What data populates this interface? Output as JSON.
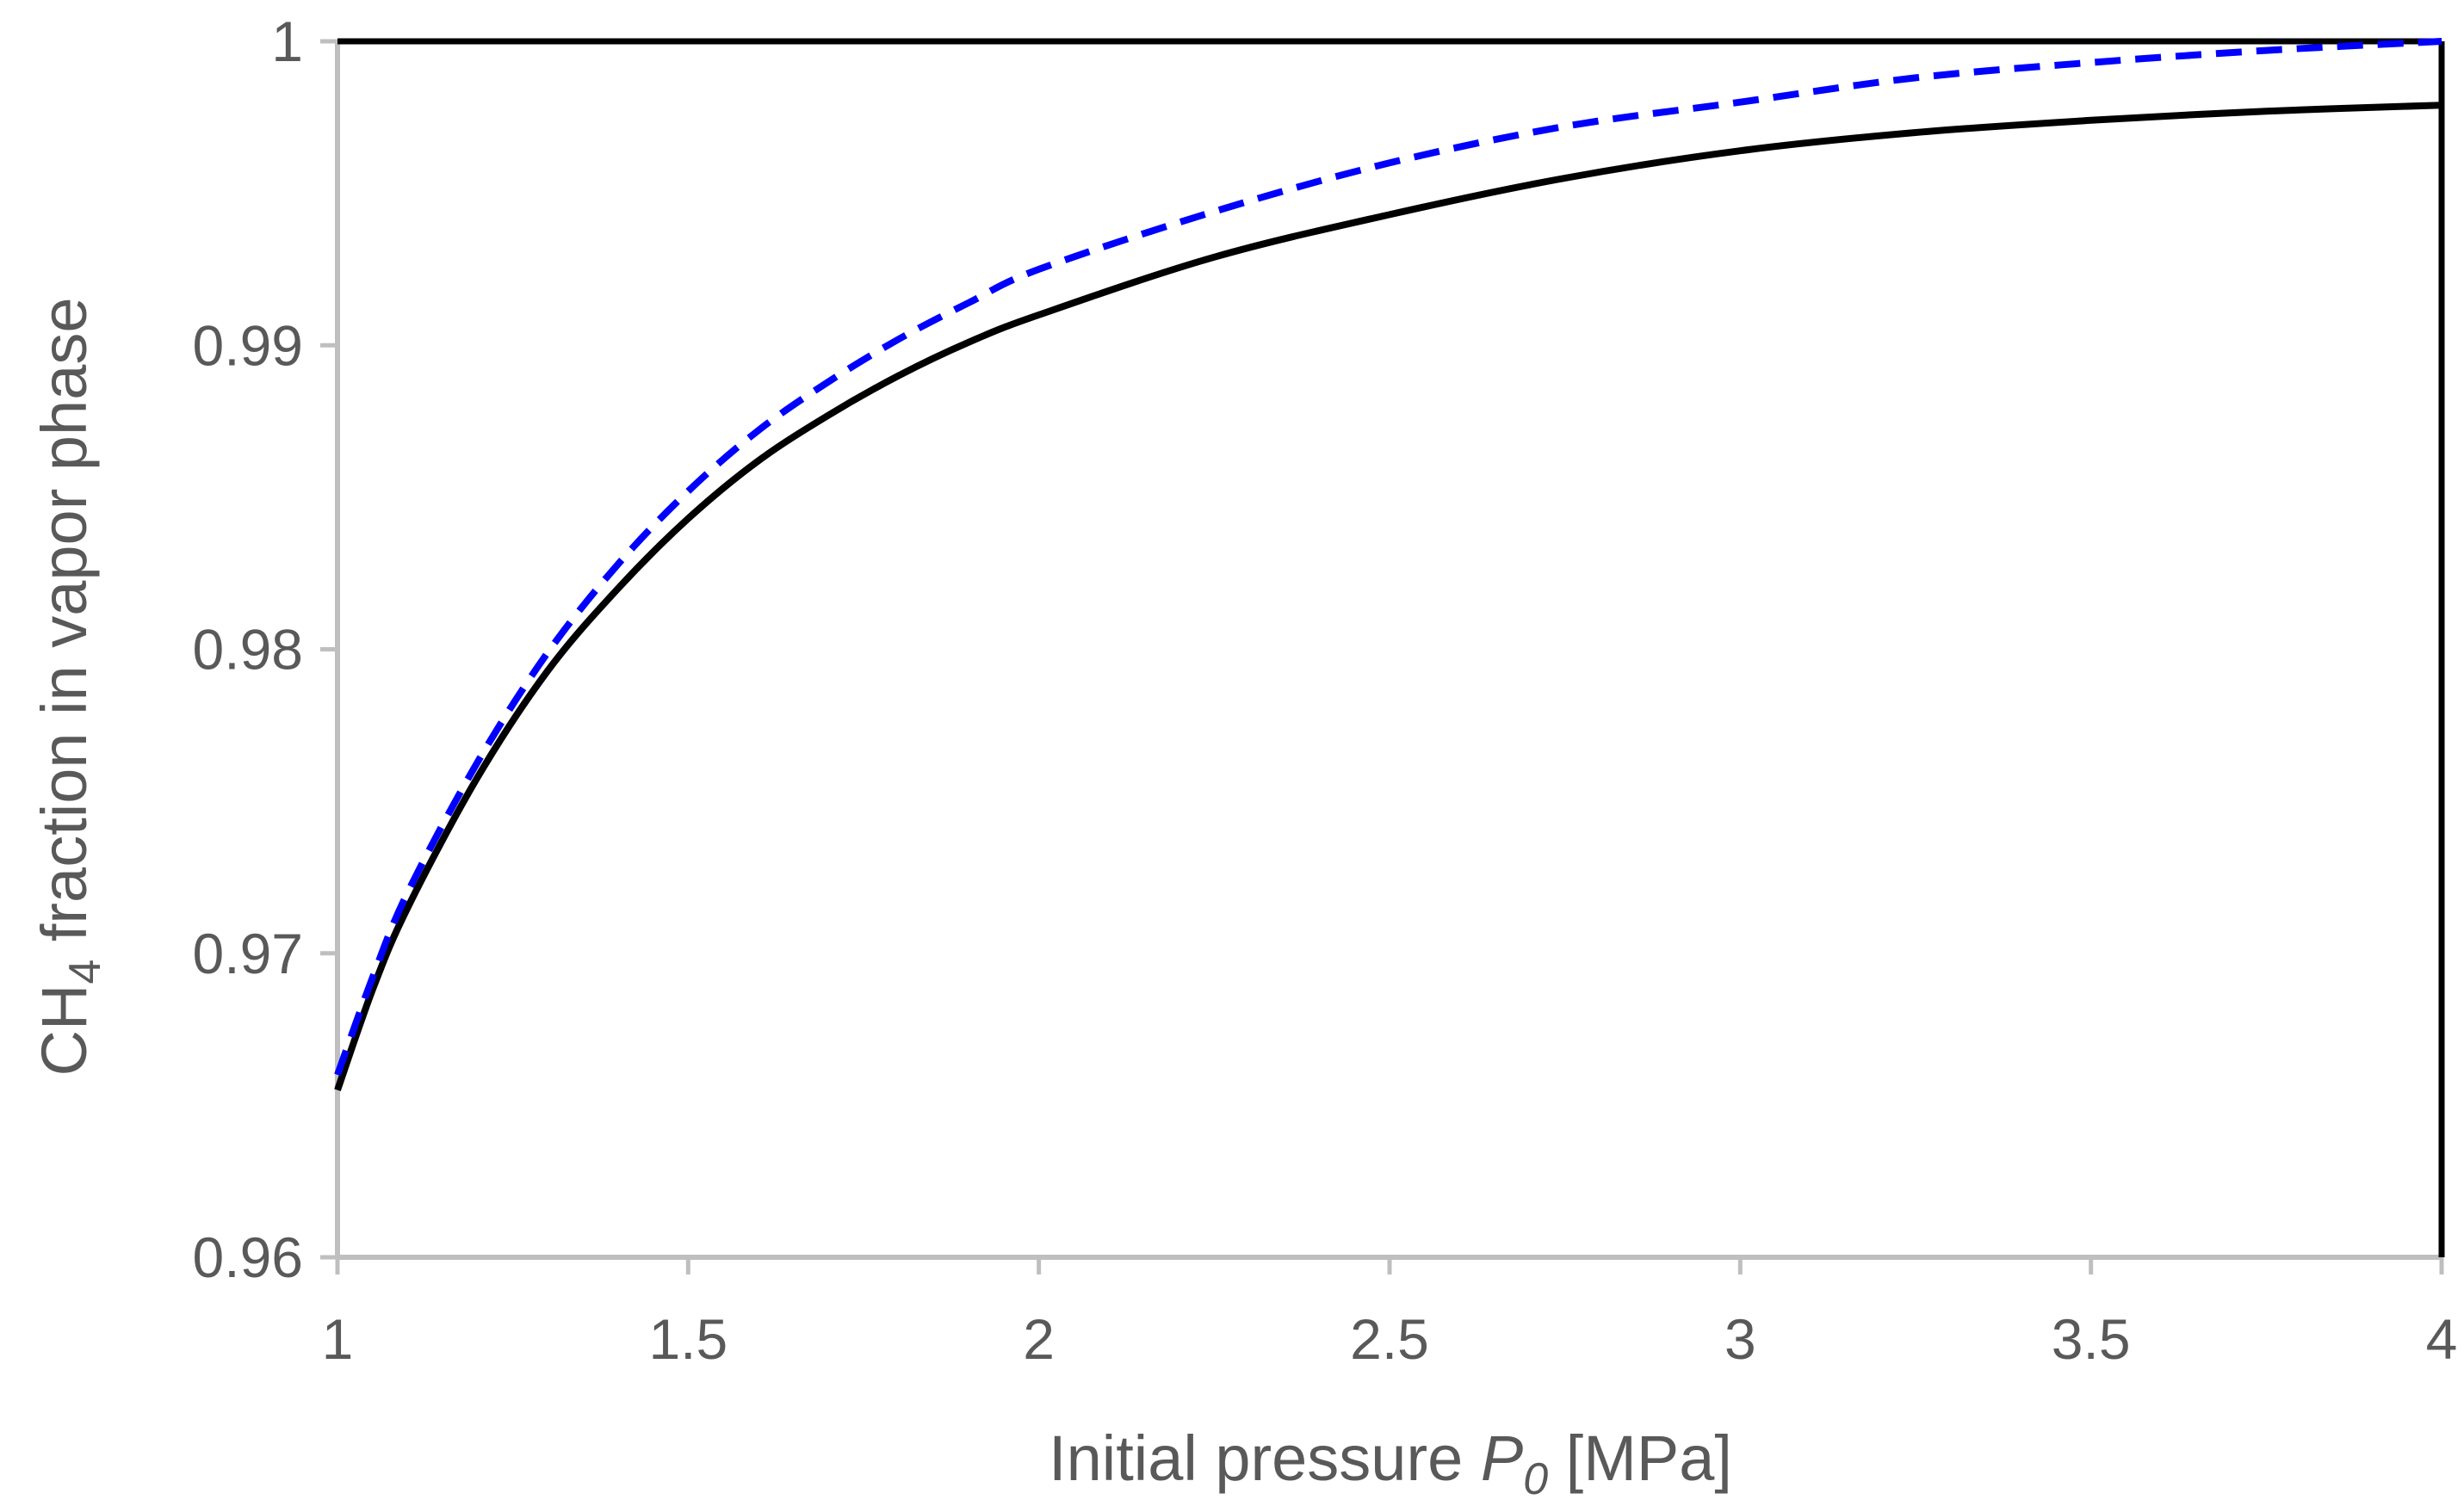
{
  "chart_data": {
    "type": "line",
    "title": "",
    "xlabel": {
      "prefix": "Initial pressure ",
      "var": "P",
      "sub": "0",
      "suffix": " [MPa]"
    },
    "ylabel": {
      "prefix": "CH",
      "sub": "4",
      "suffix": " fraction in vapor phase"
    },
    "xlim": [
      1,
      4
    ],
    "ylim": [
      0.96,
      1
    ],
    "xticks": [
      1,
      1.5,
      2,
      2.5,
      3,
      3.5,
      4
    ],
    "xtick_labels": [
      "1",
      "1.5",
      "2",
      "2.5",
      "3",
      "3.5",
      "4"
    ],
    "yticks": [
      0.96,
      0.97,
      0.98,
      0.99,
      1
    ],
    "ytick_labels": [
      "0.96",
      "0.97",
      "0.98",
      "0.99",
      "1"
    ],
    "grid": false,
    "series": [
      {
        "name": "solid",
        "color": "#000000",
        "dash": "solid",
        "x": [
          1.0,
          1.05,
          1.1,
          1.2,
          1.3,
          1.4,
          1.5,
          1.6,
          1.7,
          1.8,
          1.9,
          2.0,
          2.25,
          2.5,
          2.75,
          3.0,
          3.25,
          3.5,
          3.75,
          4.0
        ],
        "y": [
          0.9655,
          0.9688,
          0.9715,
          0.9758,
          0.9793,
          0.982,
          0.9843,
          0.9862,
          0.9877,
          0.989,
          0.9901,
          0.991,
          0.9929,
          0.9943,
          0.9955,
          0.9964,
          0.997,
          0.9974,
          0.9977,
          0.9979
        ]
      },
      {
        "name": "dashed",
        "color": "#0000FF",
        "dash": "dashed",
        "x": [
          1.0,
          1.05,
          1.1,
          1.2,
          1.3,
          1.4,
          1.5,
          1.6,
          1.7,
          1.8,
          1.9,
          2.0,
          2.25,
          2.5,
          2.75,
          3.0,
          3.25,
          3.5,
          3.75,
          4.0
        ],
        "y": [
          0.966,
          0.9692,
          0.972,
          0.9763,
          0.9799,
          0.9828,
          0.9852,
          0.9872,
          0.9888,
          0.9902,
          0.9914,
          0.9925,
          0.9944,
          0.996,
          0.9972,
          0.998,
          0.9988,
          0.9993,
          0.9997,
          1.0
        ]
      }
    ]
  }
}
